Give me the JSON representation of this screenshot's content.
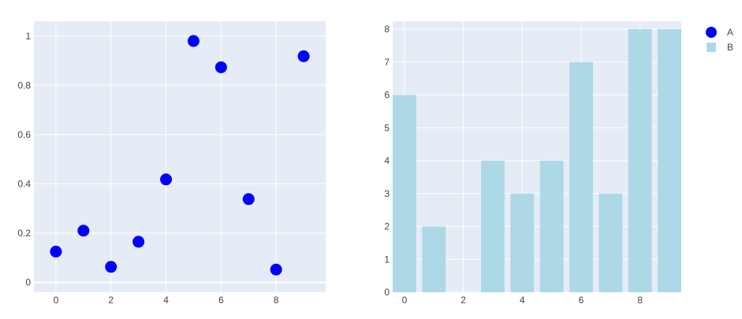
{
  "chart_data": [
    {
      "type": "scatter",
      "series": [
        {
          "name": "A",
          "color": "#0000ff",
          "x": [
            0,
            1,
            2,
            3,
            4,
            5,
            6,
            7,
            8,
            9
          ],
          "y": [
            0.125,
            0.21,
            0.063,
            0.165,
            0.418,
            0.98,
            0.873,
            0.338,
            0.052,
            0.918
          ]
        }
      ],
      "xlim": [
        -0.8,
        9.8
      ],
      "ylim": [
        -0.04,
        1.06
      ],
      "xticks": [
        0,
        2,
        4,
        6,
        8
      ],
      "yticks": [
        0,
        0.2,
        0.4,
        0.6,
        0.8,
        1
      ],
      "ytick_labels": [
        "0",
        "0.2",
        "0.4",
        "0.6",
        "0.8",
        "1"
      ],
      "grid": true
    },
    {
      "type": "bar",
      "series": [
        {
          "name": "B",
          "color": "#add8e6",
          "x": [
            0,
            1,
            2,
            3,
            4,
            5,
            6,
            7,
            8,
            9
          ],
          "values": [
            6,
            2,
            0,
            4,
            3,
            4,
            7,
            3,
            8,
            8
          ]
        }
      ],
      "xlim": [
        -0.4,
        9.4
      ],
      "ylim": [
        0,
        8.24
      ],
      "xticks": [
        0,
        2,
        4,
        6,
        8
      ],
      "yticks": [
        0,
        1,
        2,
        3,
        4,
        5,
        6,
        7,
        8
      ],
      "grid": true
    }
  ],
  "legend": {
    "position": "top-right",
    "items": [
      {
        "label": "A",
        "color": "#0000ff",
        "symbol": "circle"
      },
      {
        "label": "B",
        "color": "#add8e6",
        "symbol": "square"
      }
    ]
  },
  "colors": {
    "plot_bg": "#e5ecf6",
    "grid": "#ffffff",
    "tick_text": "#444444"
  }
}
